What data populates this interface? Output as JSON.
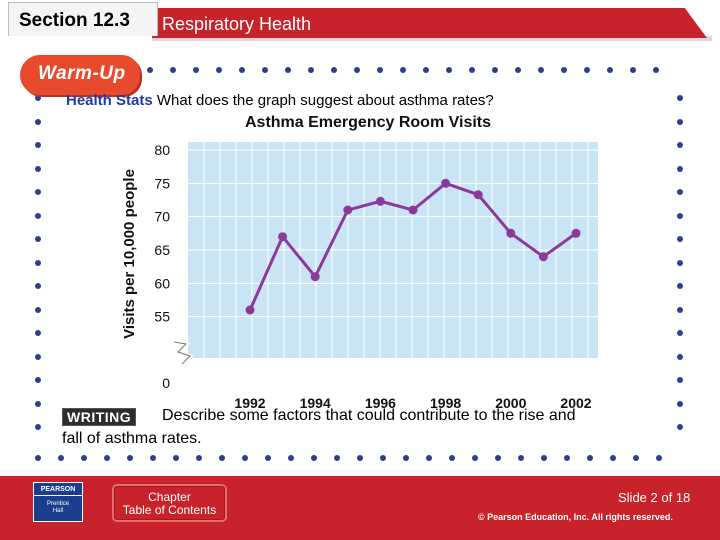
{
  "header": {
    "section": "Section 12.3",
    "title": "Respiratory Health"
  },
  "badge": {
    "label": "Warm-Up"
  },
  "question": {
    "prefix": "Health Stats",
    "text": "What does the graph suggest about asthma rates?"
  },
  "chart_data": {
    "type": "line",
    "title": "Asthma Emergency Room Visits",
    "ylabel": "Visits per 10,000 people",
    "xlabel": "",
    "x": [
      1992,
      1993,
      1994,
      1995,
      1996,
      1997,
      1998,
      1999,
      2000,
      2001,
      2002
    ],
    "xticks": [
      "1992",
      "1994",
      "1996",
      "1998",
      "2000",
      "2002"
    ],
    "yticks": [
      "0",
      "55",
      "60",
      "65",
      "70",
      "75",
      "80"
    ],
    "ylim": [
      50,
      80
    ],
    "axis_break": true,
    "grid": true,
    "series": [
      {
        "values": [
          56,
          67,
          61,
          71,
          72.3,
          71,
          75,
          73.3,
          67.5,
          64,
          67.5
        ],
        "color": "#8b3a9c"
      }
    ],
    "plot_bg": "#c9e4f4",
    "grid_color": "#ffffff"
  },
  "writing": {
    "label": "WRITING",
    "line1": "Describe some factors that could contribute to the rise and",
    "line2": "fall of asthma rates."
  },
  "footer": {
    "logo_top": "PEARSON",
    "logo_bottom_1": "Prentice",
    "logo_bottom_2": "Hall",
    "toc_line1": "Chapter",
    "toc_line2": "Table of Contents",
    "slide": "Slide 2 of 18",
    "copyright": "© Pearson Education, Inc. All rights reserved."
  },
  "colors": {
    "brand_red": "#c8222a",
    "dot_blue": "#2c3f93",
    "badge_orange": "#e84a2e"
  }
}
